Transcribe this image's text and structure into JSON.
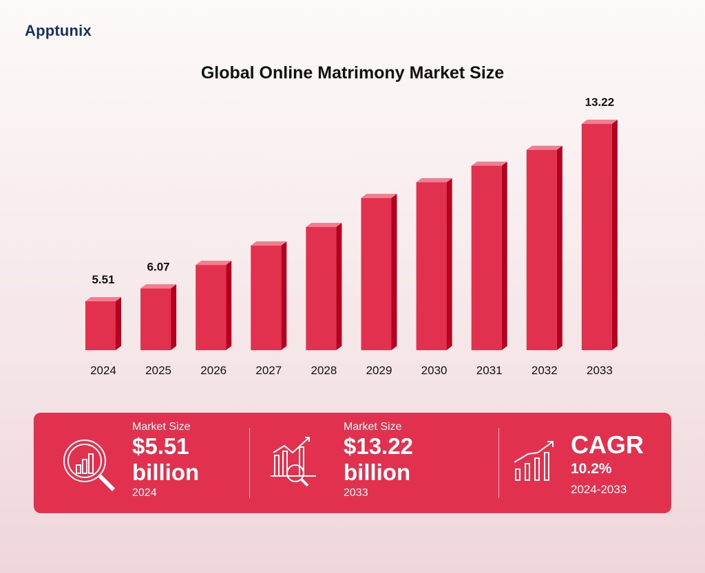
{
  "logo": "Apptunix",
  "chart_data": {
    "type": "bar",
    "title": "Global Online Matrimony Market Size",
    "categories": [
      "2024",
      "2025",
      "2026",
      "2027",
      "2028",
      "2029",
      "2030",
      "2031",
      "2032",
      "2033"
    ],
    "values": [
      5.51,
      6.07,
      7.09,
      7.93,
      8.74,
      10.0,
      10.68,
      11.4,
      12.09,
      13.22
    ],
    "data_labels": {
      "0": "5.51",
      "1": "6.07",
      "9": "13.22"
    },
    "bar_color": "#e2304f",
    "grid": false,
    "legend": "none"
  },
  "stats": [
    {
      "label": "Market Size",
      "value": "$5.51",
      "unit": "billion",
      "year": "2024",
      "icon": "magnifier-chart-icon"
    },
    {
      "label": "Market Size",
      "value": "$13.22",
      "unit": "billion",
      "year": "2033",
      "icon": "growth-analysis-icon"
    },
    {
      "label": "",
      "value": "CAGR",
      "unit": "10.2%",
      "year": "2024-2033",
      "icon": "trend-up-bars-icon"
    }
  ]
}
